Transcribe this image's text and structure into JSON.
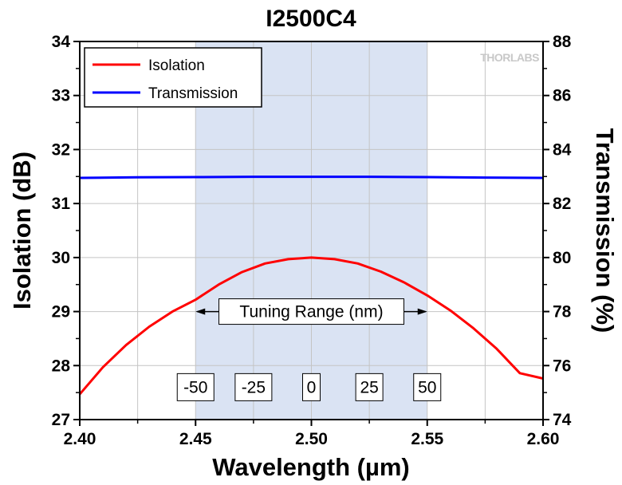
{
  "chart_data": {
    "type": "line",
    "title": "I2500C4",
    "xlabel": "Wavelength (µm)",
    "ylabel_left": "Isolation (dB)",
    "ylabel_right": "Transmission (%)",
    "xlim": [
      2.4,
      2.6
    ],
    "ylim_left": [
      27,
      34
    ],
    "ylim_right": [
      74,
      88
    ],
    "x_ticks": [
      "2.40",
      "2.45",
      "2.50",
      "2.55",
      "2.60"
    ],
    "y_left_ticks": [
      "27",
      "28",
      "29",
      "30",
      "31",
      "32",
      "33",
      "34"
    ],
    "y_right_ticks": [
      "74",
      "76",
      "78",
      "80",
      "82",
      "84",
      "86",
      "88"
    ],
    "grid": true,
    "legend_position": "top-left",
    "logo": "THORLABS",
    "shaded_region": {
      "x_start": 2.45,
      "x_end": 2.55,
      "color": "#dae3f3"
    },
    "annotation": {
      "label": "Tuning Range (nm)",
      "y": 29.0,
      "x_start": 2.45,
      "x_end": 2.55,
      "markers": [
        {
          "x": 2.45,
          "label": "-50"
        },
        {
          "x": 2.475,
          "label": "-25"
        },
        {
          "x": 2.5,
          "label": "0"
        },
        {
          "x": 2.525,
          "label": "25"
        },
        {
          "x": 2.55,
          "label": "50"
        }
      ],
      "marker_y": 27.6
    },
    "series": [
      {
        "name": "Isolation",
        "axis": "left",
        "color": "#ff0000",
        "x": [
          2.4,
          2.41,
          2.42,
          2.43,
          2.44,
          2.45,
          2.46,
          2.47,
          2.48,
          2.49,
          2.5,
          2.51,
          2.52,
          2.53,
          2.54,
          2.55,
          2.56,
          2.57,
          2.58,
          2.59,
          2.6
        ],
        "y": [
          27.47,
          27.97,
          28.38,
          28.72,
          29.0,
          29.22,
          29.5,
          29.73,
          29.89,
          29.97,
          30.0,
          29.97,
          29.89,
          29.74,
          29.54,
          29.3,
          29.02,
          28.69,
          28.31,
          27.86,
          27.76
        ]
      },
      {
        "name": "Transmission",
        "axis": "right",
        "color": "#0000ff",
        "x": [
          2.4,
          2.425,
          2.45,
          2.475,
          2.5,
          2.525,
          2.55,
          2.575,
          2.6
        ],
        "y": [
          82.95,
          82.97,
          82.98,
          82.99,
          82.99,
          82.99,
          82.98,
          82.96,
          82.95
        ]
      }
    ]
  }
}
